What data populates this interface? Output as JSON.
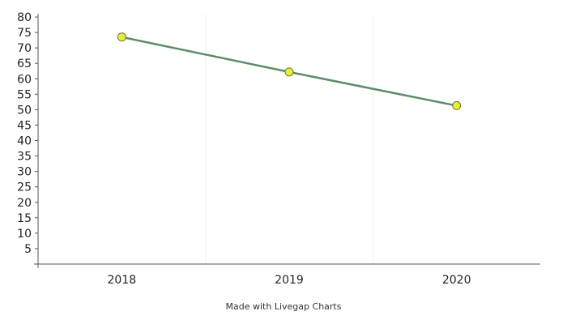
{
  "chart_data": {
    "type": "line",
    "categories": [
      "2018",
      "2019",
      "2020"
    ],
    "series": [
      {
        "values": [
          73.5,
          62.2,
          51.3
        ],
        "line_color": "#5e8c6a",
        "marker_fill": "#e6ee3a",
        "marker_stroke": "#6a7a2a"
      }
    ],
    "ylim": [
      0,
      80
    ],
    "yticks": [
      5,
      10,
      15,
      20,
      25,
      30,
      35,
      40,
      45,
      50,
      55,
      60,
      65,
      70,
      75,
      80
    ],
    "grid": "vertical",
    "grid_color": "#eef3e6",
    "axis_color": "#555555",
    "title": "",
    "xlabel": "",
    "ylabel": ""
  },
  "footer": {
    "text": "Made with Livegap Charts"
  }
}
